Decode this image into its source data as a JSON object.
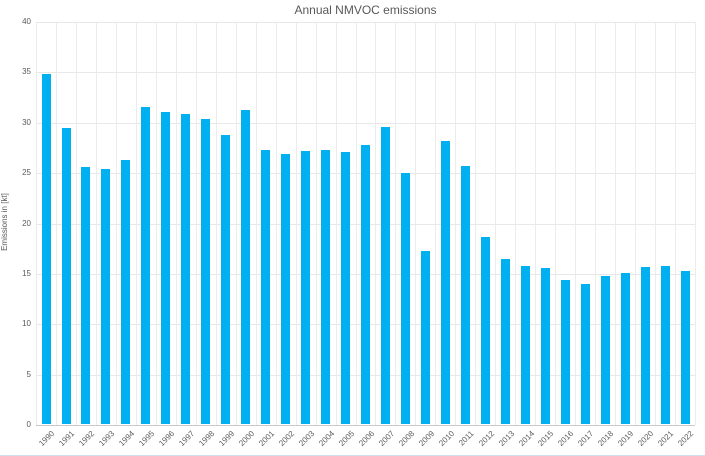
{
  "page": {
    "background": "#FFFFFF",
    "bottom_edge_color": "#cfdeeb"
  },
  "chart_data": {
    "type": "bar",
    "title": "Annual NMVOC emissions",
    "xlabel": "",
    "ylabel": "Emissions in [kt]",
    "categories": [
      "1990",
      "1991",
      "1992",
      "1993",
      "1994",
      "1995",
      "1996",
      "1997",
      "1998",
      "1999",
      "2000",
      "2001",
      "2002",
      "2003",
      "2004",
      "2005",
      "2006",
      "2007",
      "2008",
      "2009",
      "2010",
      "2011",
      "2012",
      "2013",
      "2014",
      "2015",
      "2016",
      "2017",
      "2018",
      "2019",
      "2020",
      "2021",
      "2022"
    ],
    "values": [
      34.7,
      29.4,
      25.5,
      25.3,
      26.2,
      31.5,
      31.0,
      30.8,
      30.3,
      28.7,
      31.2,
      27.2,
      26.8,
      27.1,
      27.2,
      27.0,
      27.7,
      29.5,
      24.9,
      17.2,
      28.1,
      25.6,
      18.6,
      16.4,
      15.7,
      15.5,
      14.3,
      13.9,
      14.7,
      15.0,
      15.6,
      15.7,
      15.2
    ],
    "ylim": [
      0,
      40
    ],
    "yticks": [
      0,
      5,
      10,
      15,
      20,
      25,
      30,
      35,
      40
    ],
    "grid": "horizontal-and-vertical",
    "legend_position": "none",
    "colors": {
      "bar": "#00B0F0",
      "grid": "#E8E8E8",
      "zero_axis": "#C9C9C9",
      "text": "#595959"
    }
  }
}
